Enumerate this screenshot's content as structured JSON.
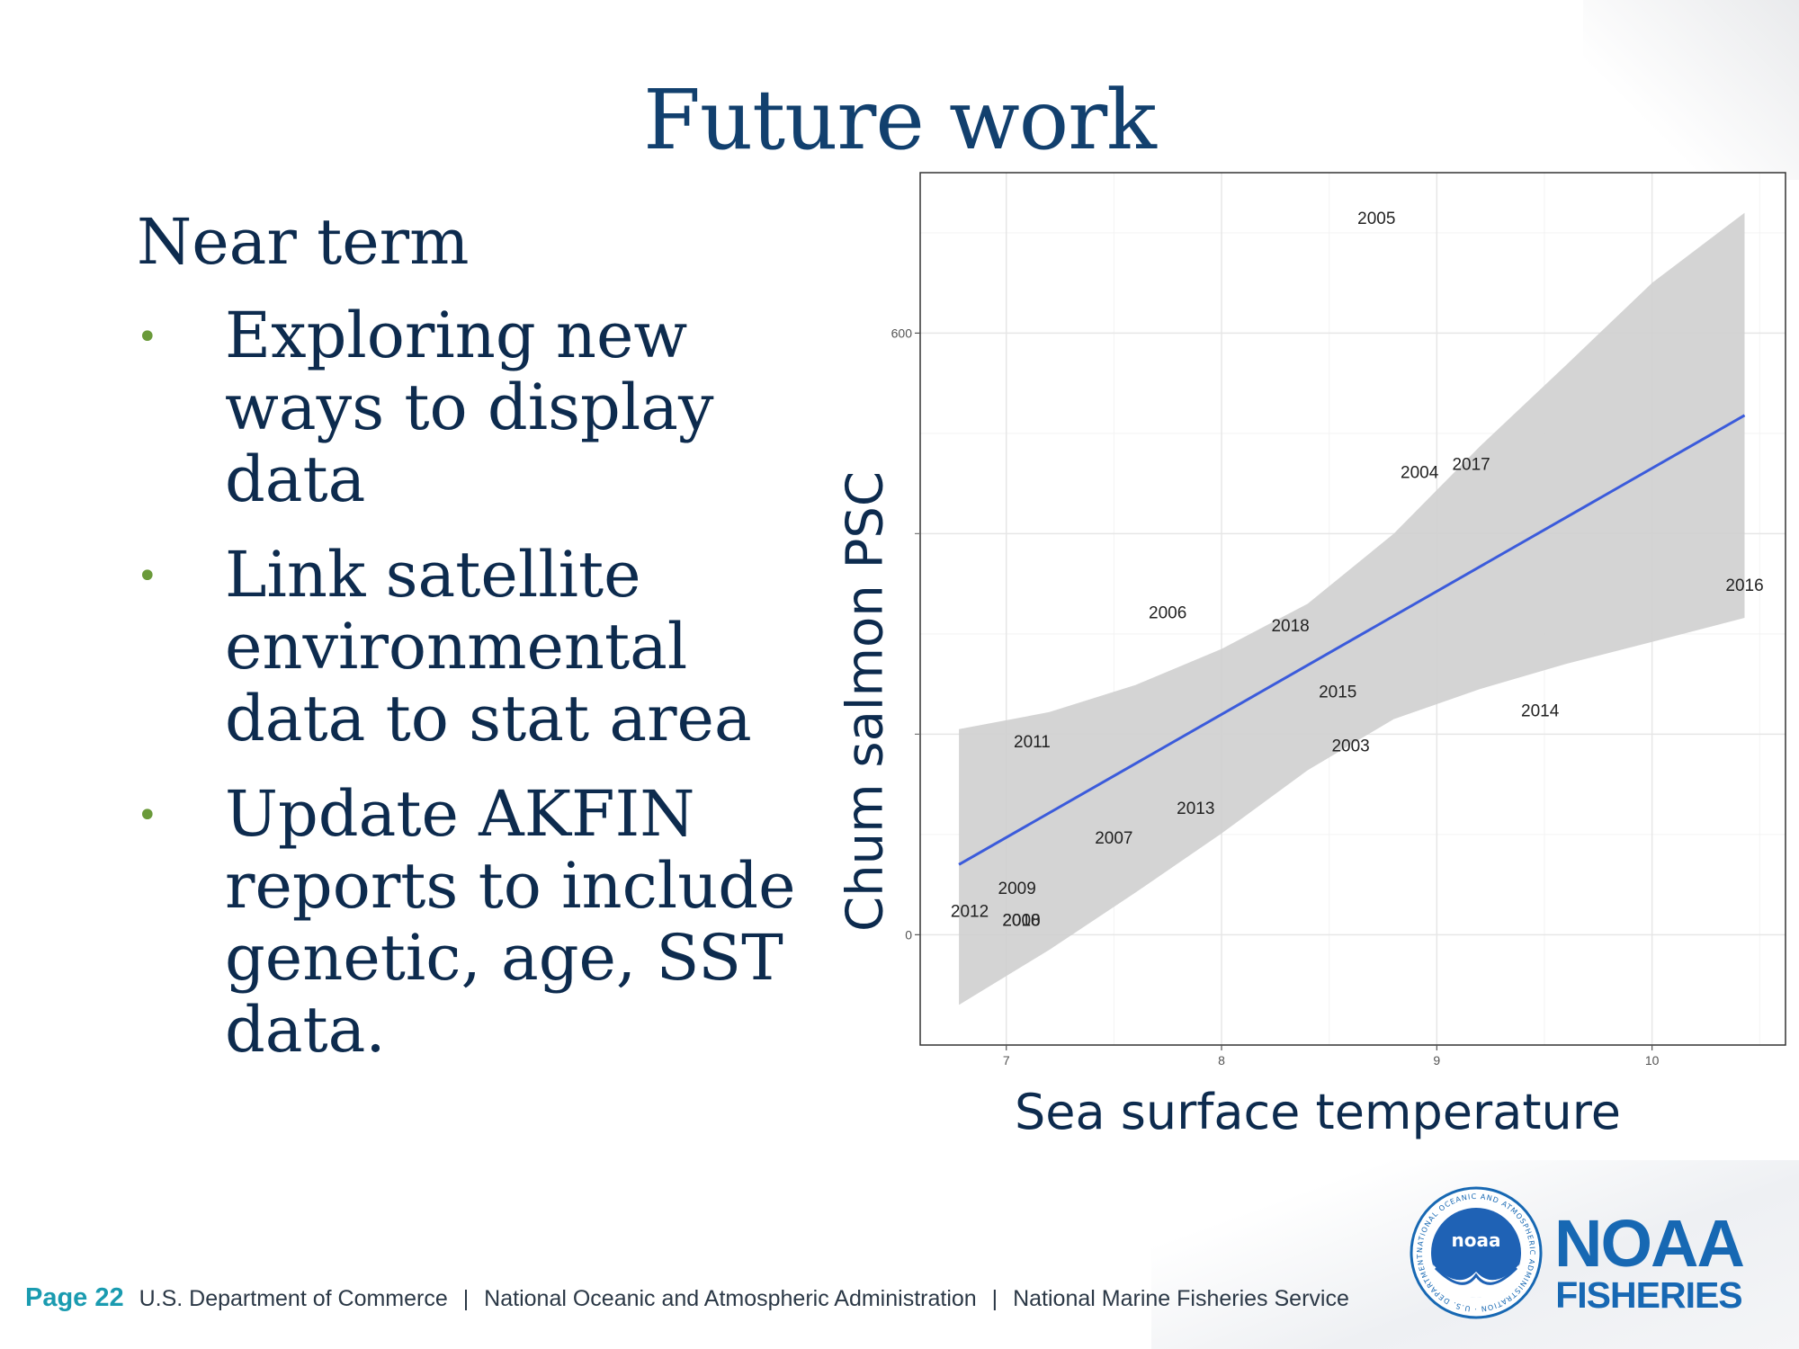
{
  "slide": {
    "title": "Future work",
    "section_heading": "Near term",
    "bullets": [
      "Exploring new ways to display data",
      "Link satellite environmental data to stat area",
      "Update AKFIN reports to include genetic, age, SST data."
    ],
    "bullet_symbol": "•"
  },
  "chart_data": {
    "type": "scatter",
    "xlabel": "Sea surface temperature",
    "ylabel": "Chum salmon PSC",
    "xlim": [
      6.6,
      10.62
    ],
    "ylim": [
      -110,
      760
    ],
    "x_ticks": [
      7,
      8,
      9,
      10
    ],
    "y_ticks": [
      0,
      600
    ],
    "points": [
      {
        "label": "2005",
        "x": 8.72,
        "y": 715
      },
      {
        "label": "2004",
        "x": 8.92,
        "y": 462
      },
      {
        "label": "2017",
        "x": 9.16,
        "y": 470
      },
      {
        "label": "2016",
        "x": 10.43,
        "y": 349
      },
      {
        "label": "2006",
        "x": 7.75,
        "y": 322
      },
      {
        "label": "2018",
        "x": 8.32,
        "y": 309
      },
      {
        "label": "2015",
        "x": 8.54,
        "y": 243
      },
      {
        "label": "2014",
        "x": 9.48,
        "y": 224
      },
      {
        "label": "2003",
        "x": 8.6,
        "y": 189
      },
      {
        "label": "2011",
        "x": 7.12,
        "y": 193
      },
      {
        "label": "2013",
        "x": 7.88,
        "y": 127
      },
      {
        "label": "2007",
        "x": 7.5,
        "y": 97
      },
      {
        "label": "2009",
        "x": 7.05,
        "y": 47
      },
      {
        "label": "2012",
        "x": 6.83,
        "y": 24
      },
      {
        "label": "2010",
        "x": 7.07,
        "y": 15
      },
      {
        "label": "2008",
        "x": 7.07,
        "y": 15
      }
    ],
    "fit_line": {
      "x": [
        6.78,
        10.43
      ],
      "y": [
        70,
        518
      ],
      "color": "#3b5bdb"
    },
    "confidence_band": {
      "x": [
        6.78,
        7.2,
        7.6,
        8.0,
        8.4,
        8.8,
        9.2,
        9.6,
        10.0,
        10.43
      ],
      "upper": [
        205,
        222,
        249,
        285,
        330,
        400,
        487,
        568,
        650,
        720
      ],
      "lower": [
        -70,
        -15,
        42,
        101,
        164,
        215,
        245,
        270,
        292,
        316
      ],
      "color": "#cfcfcf"
    },
    "grid": true
  },
  "footer": {
    "page_label": "Page 22",
    "items": [
      "U.S. Department of Commerce",
      "National Oceanic and Atmospheric Administration",
      "National Marine Fisheries Service"
    ],
    "separator": "|"
  },
  "logo": {
    "emblem_text": "noaa",
    "ring_text": "NATIONAL OCEANIC AND ATMOSPHERIC ADMINISTRATION · U.S. DEPARTMENT OF COMMERCE",
    "brand_line1": "NOAA",
    "brand_line2": "FISHERIES"
  }
}
